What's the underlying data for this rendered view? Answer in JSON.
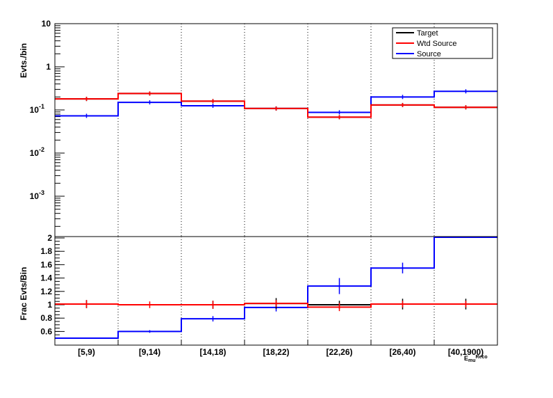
{
  "chart_data": [
    {
      "type": "line",
      "ylabel": "Evts./bin",
      "yscale": "log",
      "ylim": [
        0.0001,
        10
      ],
      "ytick_labels": [
        {
          "value": 10,
          "label": "10"
        },
        {
          "value": 1,
          "label": "1"
        },
        {
          "value": 0.1,
          "label": "10",
          "sup": "-1"
        },
        {
          "value": 0.01,
          "label": "10",
          "sup": "-2"
        },
        {
          "value": 0.001,
          "label": "10",
          "sup": "-3"
        }
      ],
      "categories": [
        "[5,9)",
        "[9,14)",
        "[14,18)",
        "[18,22)",
        "[22,26)",
        "[26,40)",
        "[40,1900)"
      ],
      "legend": {
        "position": "top-right",
        "entries": [
          "Target",
          "Wtd Source",
          "Source"
        ]
      },
      "grid": "vertical dotted",
      "series": [
        {
          "name": "Target",
          "color": "#000000",
          "values": [
            0.18,
            0.24,
            0.16,
            0.108,
            0.068,
            0.13,
            0.115
          ]
        },
        {
          "name": "Wtd Source",
          "color": "#ff0000",
          "values": [
            0.18,
            0.24,
            0.16,
            0.108,
            0.068,
            0.13,
            0.115
          ]
        },
        {
          "name": "Source",
          "color": "#0000ff",
          "values": [
            0.073,
            0.15,
            0.125,
            0.108,
            0.088,
            0.2,
            0.27
          ]
        }
      ]
    },
    {
      "type": "line",
      "ylabel": "Frac Evts/Bin",
      "ylim": [
        0.5,
        2.0
      ],
      "ytick_labels": [
        "2",
        "1.8",
        "1.6",
        "1.4",
        "1.2",
        "1",
        "0.8",
        "0.6"
      ],
      "xlabel": "E_{mu}^{Reco}",
      "categories": [
        "[5,9)",
        "[9,14)",
        "[14,18)",
        "[18,22)",
        "[22,26)",
        "[26,40)",
        "[40,1900)"
      ],
      "series": [
        {
          "name": "Target",
          "color": "#000000",
          "values": [
            1.01,
            1.0,
            1.0,
            1.02,
            1.0,
            1.01,
            1.01
          ],
          "errors": [
            0.06,
            0.0,
            0.06,
            0.08,
            0.06,
            0.08,
            0.08
          ]
        },
        {
          "name": "Wtd Source",
          "color": "#ff0000",
          "values": [
            1.01,
            1.0,
            1.0,
            1.02,
            0.965,
            1.01,
            1.01
          ],
          "errors": [
            0.06,
            0.05,
            0.06,
            0.05,
            0.06,
            0.05,
            0.05
          ]
        },
        {
          "name": "Source",
          "color": "#0000ff",
          "values": [
            0.5,
            0.6,
            0.79,
            0.96,
            1.28,
            1.55,
            2.01
          ],
          "errors": [
            0.0,
            0.02,
            0.04,
            0.06,
            0.12,
            0.08,
            0.0
          ]
        }
      ]
    }
  ]
}
